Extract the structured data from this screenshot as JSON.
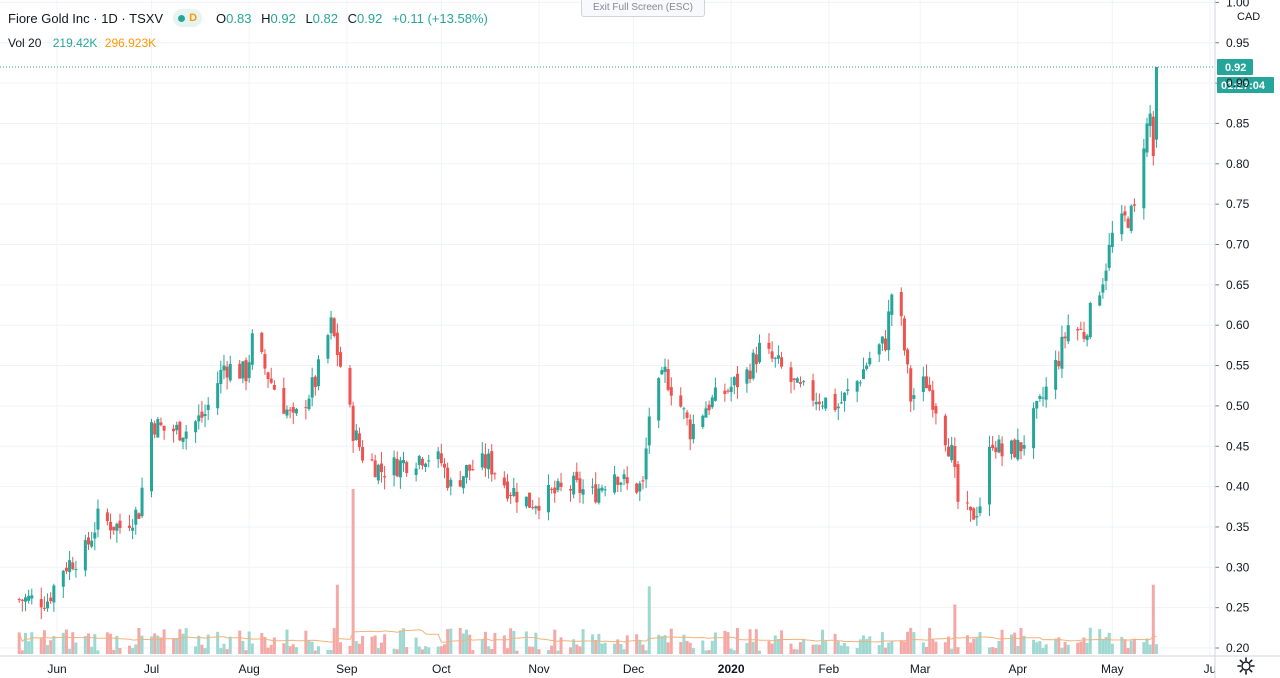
{
  "header": {
    "title": "Fiore Gold Inc · 1D · TSXV",
    "interval_tag": "D",
    "ohlc": {
      "o": "0.83",
      "h": "0.92",
      "l": "0.82",
      "c": "0.92",
      "chg": "+0.11 (+13.58%)"
    },
    "volume_label": "Vol 20",
    "volume_value": "219.42K",
    "volume_ma": "296.923K"
  },
  "exit_fullscreen_label": "Exit Full Screen (ESC)",
  "price_axis": {
    "currency": "CAD",
    "ticks": [
      "1.00",
      "0.95",
      "0.90",
      "0.85",
      "0.80",
      "0.75",
      "0.70",
      "0.65",
      "0.60",
      "0.55",
      "0.50",
      "0.45",
      "0.40",
      "0.35",
      "0.30",
      "0.25",
      "0.20"
    ],
    "last_price_label": "0.92",
    "countdown_label": "01:27:04"
  },
  "colors": {
    "up": "#26a69a",
    "down": "#ef5350",
    "vol_up": "#9fd8d1",
    "vol_down": "#f5a9a7",
    "vol_ma": "#f2b27a",
    "last_price": "#26a69a"
  },
  "chart_data": {
    "type": "candlestick",
    "title": "",
    "x_axis": {
      "tick_labels": [
        "Jun",
        "Jul",
        "Aug",
        "Sep",
        "Oct",
        "Nov",
        "Dec",
        "2020",
        "Feb",
        "Mar",
        "Apr",
        "May",
        "Ju"
      ],
      "tick_dates": [
        "2019-06-01",
        "2019-07-01",
        "2019-08-01",
        "2019-09-01",
        "2019-10-01",
        "2019-11-01",
        "2019-12-01",
        "2020-01-01",
        "2020-02-01",
        "2020-03-01",
        "2020-04-01",
        "2020-05-01",
        "2020-06-01"
      ]
    },
    "y_axis": {
      "label": "CAD",
      "range": [
        0.18,
        1.0
      ],
      "ticks": [
        0.2,
        0.25,
        0.3,
        0.35,
        0.4,
        0.45,
        0.5,
        0.55,
        0.6,
        0.65,
        0.7,
        0.75,
        0.8,
        0.85,
        0.9,
        0.95,
        1.0
      ]
    },
    "last_price": 0.92,
    "price_path_approx": [
      {
        "date": "2019-05-20",
        "price": 0.26
      },
      {
        "date": "2019-05-29",
        "price": 0.26
      },
      {
        "date": "2019-06-03",
        "price": 0.3
      },
      {
        "date": "2019-06-10",
        "price": 0.32
      },
      {
        "date": "2019-06-14",
        "price": 0.36
      },
      {
        "date": "2019-06-21",
        "price": 0.35
      },
      {
        "date": "2019-06-27",
        "price": 0.37
      },
      {
        "date": "2019-07-01",
        "price": 0.48
      },
      {
        "date": "2019-07-05",
        "price": 0.47
      },
      {
        "date": "2019-07-12",
        "price": 0.47
      },
      {
        "date": "2019-07-18",
        "price": 0.49
      },
      {
        "date": "2019-07-24",
        "price": 0.55
      },
      {
        "date": "2019-07-31",
        "price": 0.54
      },
      {
        "date": "2019-08-02",
        "price": 0.58
      },
      {
        "date": "2019-08-08",
        "price": 0.53
      },
      {
        "date": "2019-08-15",
        "price": 0.48
      },
      {
        "date": "2019-08-22",
        "price": 0.53
      },
      {
        "date": "2019-08-27",
        "price": 0.6
      },
      {
        "date": "2019-08-30",
        "price": 0.55
      },
      {
        "date": "2019-09-03",
        "price": 0.47
      },
      {
        "date": "2019-09-06",
        "price": 0.44
      },
      {
        "date": "2019-09-12",
        "price": 0.42
      },
      {
        "date": "2019-09-19",
        "price": 0.43
      },
      {
        "date": "2019-09-26",
        "price": 0.44
      },
      {
        "date": "2019-10-01",
        "price": 0.43
      },
      {
        "date": "2019-10-04",
        "price": 0.4
      },
      {
        "date": "2019-10-09",
        "price": 0.42
      },
      {
        "date": "2019-10-16",
        "price": 0.43
      },
      {
        "date": "2019-10-22",
        "price": 0.4
      },
      {
        "date": "2019-10-29",
        "price": 0.38
      },
      {
        "date": "2019-11-05",
        "price": 0.39
      },
      {
        "date": "2019-11-12",
        "price": 0.4
      },
      {
        "date": "2019-11-18",
        "price": 0.39
      },
      {
        "date": "2019-11-25",
        "price": 0.42
      },
      {
        "date": "2019-11-29",
        "price": 0.4
      },
      {
        "date": "2019-12-04",
        "price": 0.4
      },
      {
        "date": "2019-12-06",
        "price": 0.49
      },
      {
        "date": "2019-12-11",
        "price": 0.54
      },
      {
        "date": "2019-12-16",
        "price": 0.5
      },
      {
        "date": "2019-12-19",
        "price": 0.47
      },
      {
        "date": "2019-12-24",
        "price": 0.5
      },
      {
        "date": "2019-12-31",
        "price": 0.52
      },
      {
        "date": "2020-01-06",
        "price": 0.54
      },
      {
        "date": "2020-01-10",
        "price": 0.57
      },
      {
        "date": "2020-01-16",
        "price": 0.55
      },
      {
        "date": "2020-01-22",
        "price": 0.52
      },
      {
        "date": "2020-01-29",
        "price": 0.51
      },
      {
        "date": "2020-02-04",
        "price": 0.5
      },
      {
        "date": "2020-02-10",
        "price": 0.53
      },
      {
        "date": "2020-02-14",
        "price": 0.56
      },
      {
        "date": "2020-02-19",
        "price": 0.58
      },
      {
        "date": "2020-02-21",
        "price": 0.64
      },
      {
        "date": "2020-02-24",
        "price": 0.6
      },
      {
        "date": "2020-02-27",
        "price": 0.51
      },
      {
        "date": "2020-03-03",
        "price": 0.53
      },
      {
        "date": "2020-03-06",
        "price": 0.5
      },
      {
        "date": "2020-03-11",
        "price": 0.44
      },
      {
        "date": "2020-03-13",
        "price": 0.38
      },
      {
        "date": "2020-03-17",
        "price": 0.36
      },
      {
        "date": "2020-03-20",
        "price": 0.38
      },
      {
        "date": "2020-03-24",
        "price": 0.46
      },
      {
        "date": "2020-03-27",
        "price": 0.44
      },
      {
        "date": "2020-04-02",
        "price": 0.45
      },
      {
        "date": "2020-04-08",
        "price": 0.5
      },
      {
        "date": "2020-04-14",
        "price": 0.56
      },
      {
        "date": "2020-04-17",
        "price": 0.6
      },
      {
        "date": "2020-04-22",
        "price": 0.59
      },
      {
        "date": "2020-04-28",
        "price": 0.66
      },
      {
        "date": "2020-05-01",
        "price": 0.71
      },
      {
        "date": "2020-05-05",
        "price": 0.73
      },
      {
        "date": "2020-05-08",
        "price": 0.74
      },
      {
        "date": "2020-05-11",
        "price": 0.83
      },
      {
        "date": "2020-05-13",
        "price": 0.86
      },
      {
        "date": "2020-05-14",
        "price": 0.81
      },
      {
        "date": "2020-05-15",
        "price": 0.92
      }
    ],
    "volume_spikes_approx": [
      {
        "date": "2019-08-29",
        "volume_ratio": 0.42,
        "direction": "up"
      },
      {
        "date": "2019-09-03",
        "volume_ratio": 1.0,
        "direction": "down"
      },
      {
        "date": "2019-12-06",
        "volume_ratio": 0.41,
        "direction": "up"
      },
      {
        "date": "2020-03-12",
        "volume_ratio": 0.3,
        "direction": "down"
      },
      {
        "date": "2020-05-14",
        "volume_ratio": 0.42,
        "direction": "up"
      }
    ]
  }
}
